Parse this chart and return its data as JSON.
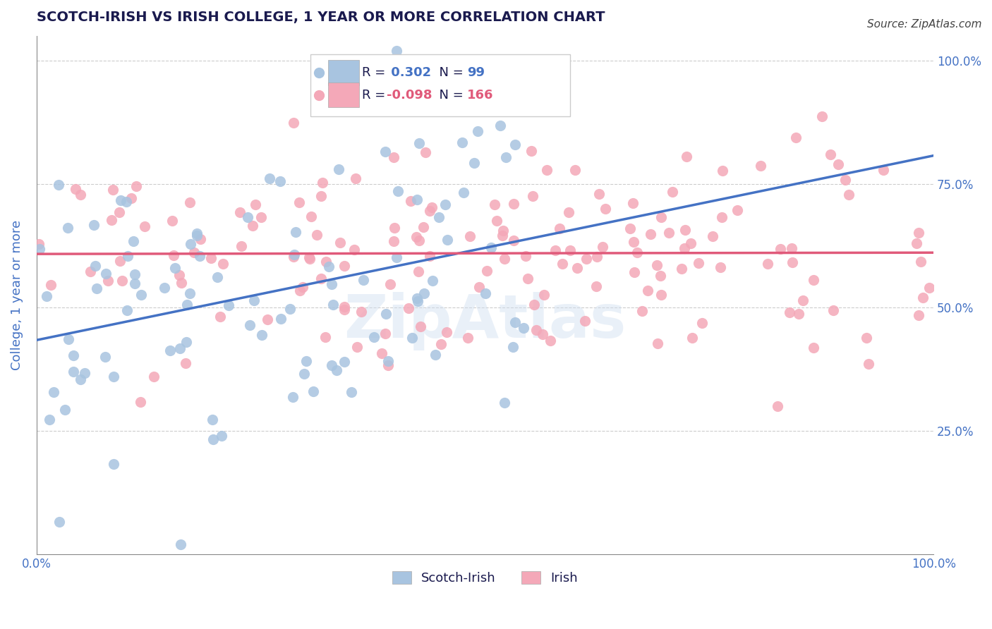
{
  "title": "SCOTCH-IRISH VS IRISH COLLEGE, 1 YEAR OR MORE CORRELATION CHART",
  "source": "Source: ZipAtlas.com",
  "xlabel": "",
  "ylabel": "College, 1 year or more",
  "xlim": [
    0.0,
    1.0
  ],
  "ylim": [
    0.0,
    1.05
  ],
  "x_ticks": [
    0.0,
    0.25,
    0.5,
    0.75,
    1.0
  ],
  "x_tick_labels": [
    "0.0%",
    "",
    "",
    "",
    "100.0%"
  ],
  "y_ticks": [
    0.25,
    0.5,
    0.75,
    1.0
  ],
  "y_tick_labels": [
    "25.0%",
    "50.0%",
    "75.0%",
    "100.0%"
  ],
  "blue_R": 0.302,
  "blue_N": 99,
  "pink_R": -0.098,
  "pink_N": 166,
  "blue_color": "#a8c4e0",
  "pink_color": "#f4a8b8",
  "blue_line_color": "#4472c4",
  "pink_line_color": "#e05a7a",
  "legend_blue_label": "Scotch-Irish",
  "legend_pink_label": "Irish",
  "watermark": "ZipAtlas",
  "background_color": "#ffffff",
  "grid_color": "#cccccc",
  "title_color": "#1a1a4e",
  "axis_label_color": "#4472c4",
  "seed_blue": 42,
  "seed_pink": 123
}
